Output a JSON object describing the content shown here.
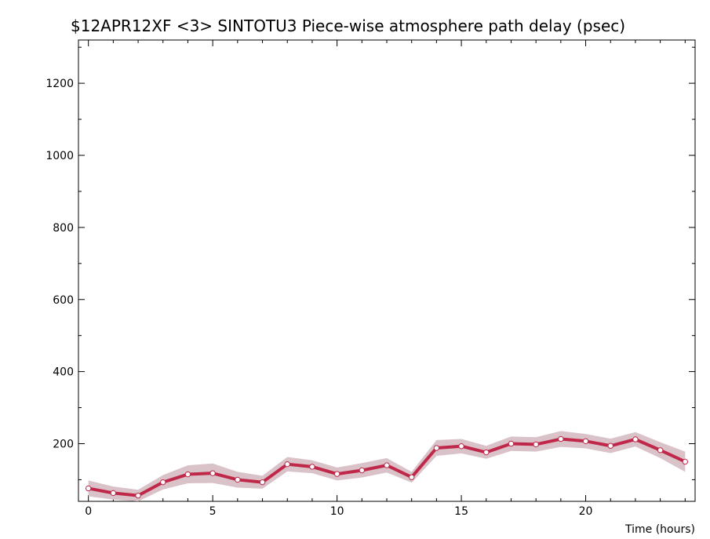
{
  "chart_data": {
    "type": "line",
    "title": "$12APR12XF <3>  SINTOTU3  Piece-wise atmosphere path delay (psec)",
    "xlabel": "Time (hours)",
    "ylabel": "",
    "xlim": [
      -0.4,
      24.4
    ],
    "ylim": [
      40,
      1320
    ],
    "xticks": [
      0,
      5,
      10,
      15,
      20
    ],
    "yticks": [
      200,
      400,
      600,
      800,
      1000,
      1200
    ],
    "grid": false,
    "colors": {
      "line": "#c0284a",
      "band": "#d9c2c8",
      "marker_fill": "#ffffff"
    },
    "series": [
      {
        "x": [
          0,
          1,
          2,
          3,
          4,
          5,
          6,
          7,
          8,
          9,
          10,
          11,
          12,
          13,
          14,
          15,
          16,
          17,
          18,
          19,
          20,
          21,
          22,
          23,
          24
        ],
        "y": [
          76,
          63,
          56,
          93,
          115,
          118,
          100,
          93,
          143,
          136,
          116,
          126,
          140,
          107,
          188,
          193,
          176,
          200,
          198,
          213,
          207,
          194,
          212,
          182,
          150
        ],
        "error": [
          22,
          18,
          16,
          20,
          25,
          27,
          22,
          18,
          20,
          18,
          18,
          20,
          20,
          15,
          22,
          20,
          18,
          20,
          20,
          22,
          20,
          20,
          20,
          22,
          28
        ]
      }
    ]
  }
}
